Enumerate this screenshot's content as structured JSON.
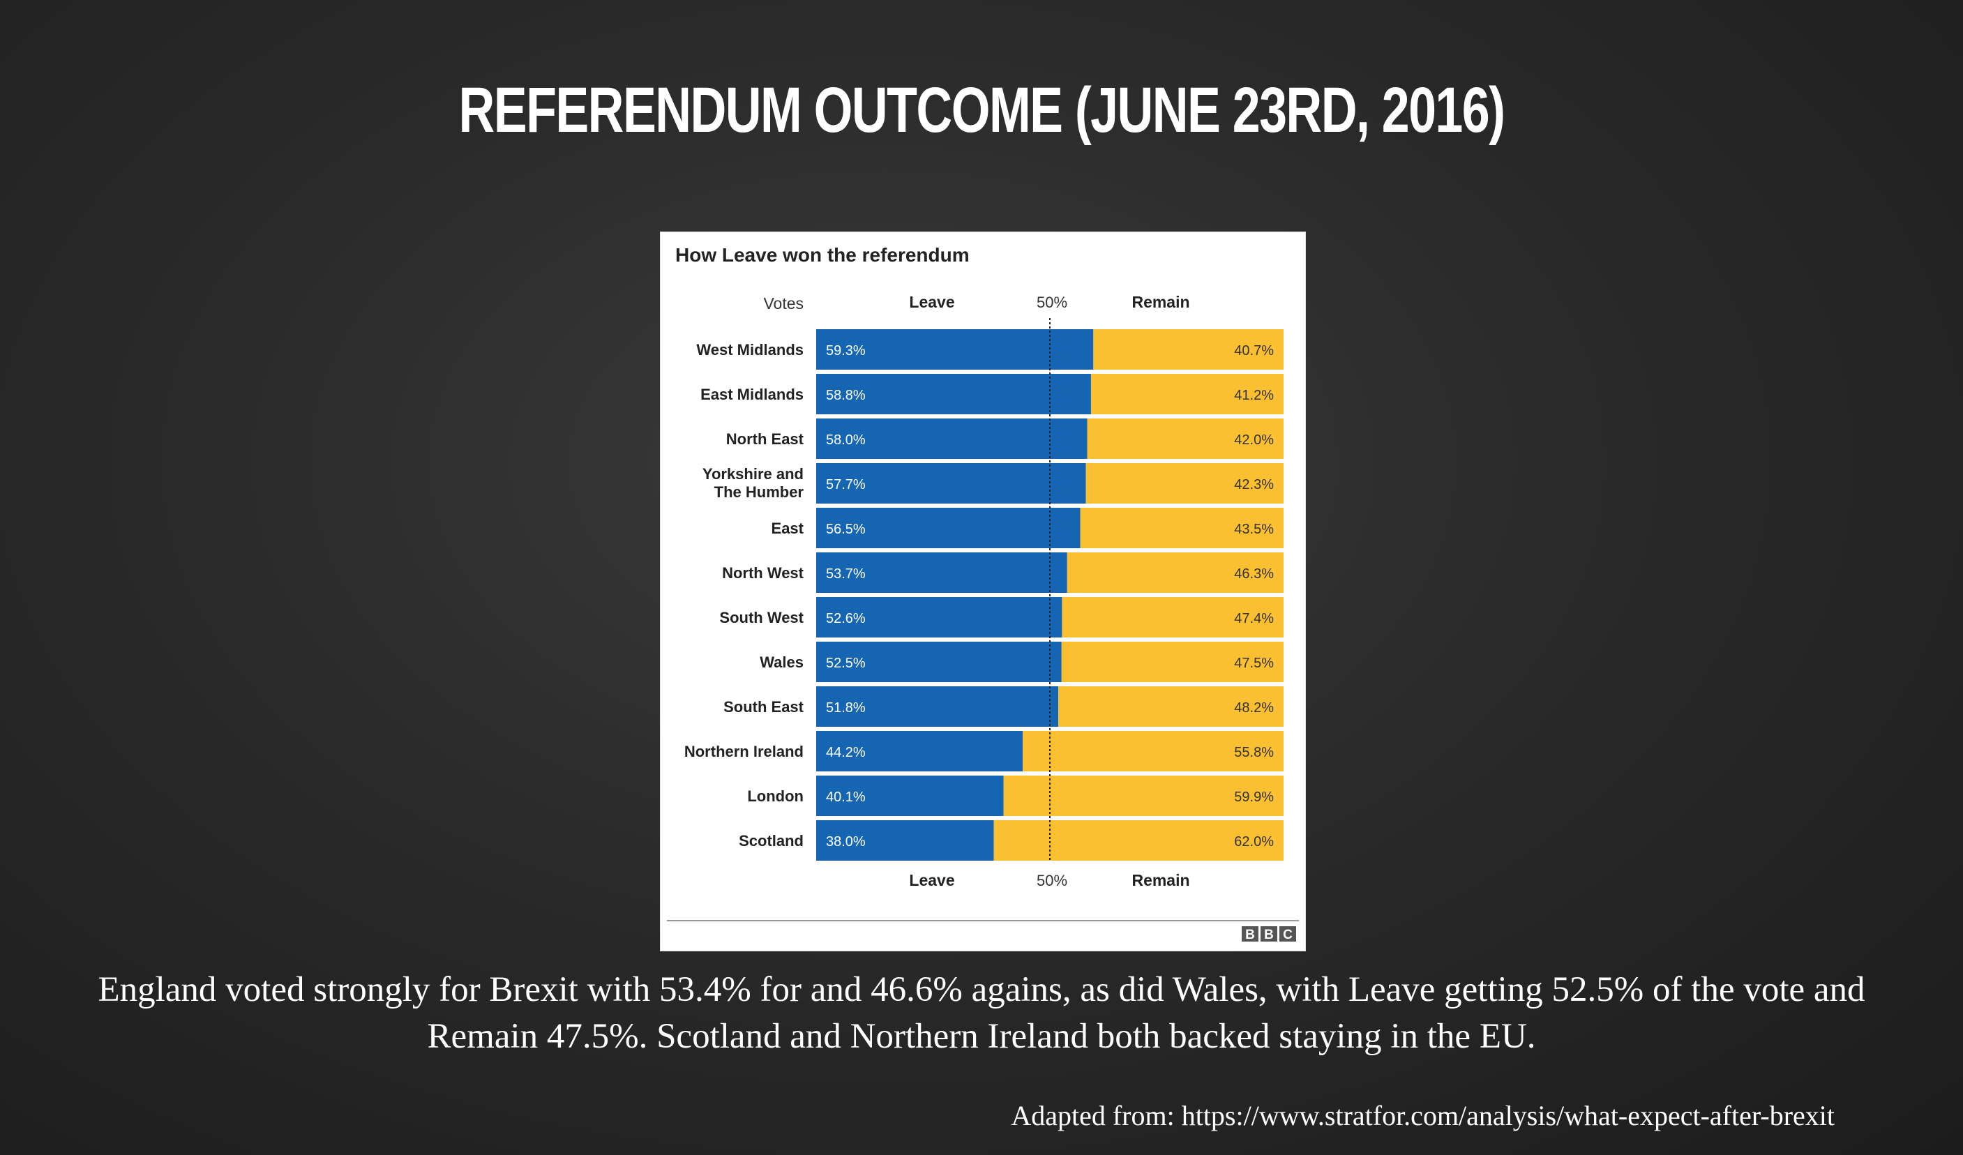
{
  "slide": {
    "title": "REFERENDUM OUTCOME (JUNE 23RD, 2016)",
    "caption": "England voted strongly for Brexit with 53.4% for and 46.6% agains, as did Wales, with Leave getting 52.5% of the vote and Remain 47.5%. Scotland and Northern Ireland both backed staying in the EU.",
    "source": "Adapted from: https://www.stratfor.com/analysis/what-expect-after-brexit"
  },
  "chart_data": {
    "type": "bar",
    "title": "How Leave won the referendum",
    "header_votes": "Votes",
    "header_leave": "Leave",
    "header_remain": "Remain",
    "midline_label": "50%",
    "footer_leave": "Leave",
    "footer_remain": "Remain",
    "footer_mid": "50%",
    "logo": "BBC",
    "stacked": true,
    "orientation": "horizontal",
    "xlim": [
      0,
      100
    ],
    "reference_line": 50,
    "colors": {
      "leave": "#1565b2",
      "remain": "#fbbf32"
    },
    "categories": [
      [
        "West Midlands"
      ],
      [
        "East Midlands"
      ],
      [
        "North East"
      ],
      [
        "Yorkshire and",
        "The Humber"
      ],
      [
        "East"
      ],
      [
        "North West"
      ],
      [
        "South West"
      ],
      [
        "Wales"
      ],
      [
        "South East"
      ],
      [
        "Northern Ireland"
      ],
      [
        "London"
      ],
      [
        "Scotland"
      ]
    ],
    "series": [
      {
        "name": "Leave",
        "values": [
          59.3,
          58.8,
          58.0,
          57.7,
          56.5,
          53.7,
          52.6,
          52.5,
          51.8,
          44.2,
          40.1,
          38.0
        ]
      },
      {
        "name": "Remain",
        "values": [
          40.7,
          41.2,
          42.0,
          42.3,
          43.5,
          46.3,
          47.4,
          47.5,
          48.2,
          55.8,
          59.9,
          62.0
        ]
      }
    ]
  }
}
